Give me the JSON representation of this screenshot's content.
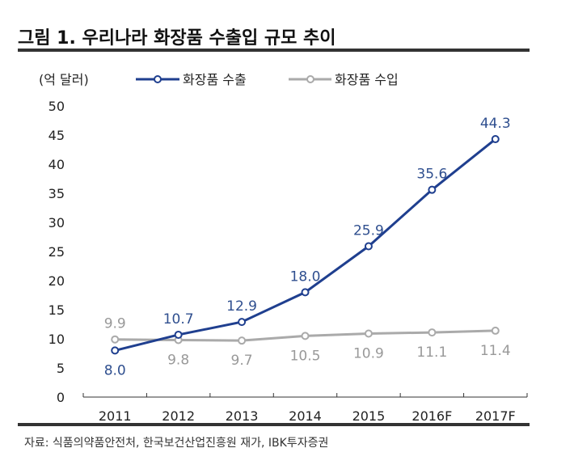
{
  "chart_data": {
    "type": "line",
    "title": "그림 1. 우리나라 화장품 수출입 규모 추이",
    "ylabel": "(억 달러)",
    "xlabel": "",
    "categories": [
      "2011",
      "2012",
      "2013",
      "2014",
      "2015",
      "2016F",
      "2017F"
    ],
    "ylim": [
      0,
      50
    ],
    "yticks": [
      0,
      5,
      10,
      15,
      20,
      25,
      30,
      35,
      40,
      45,
      50
    ],
    "grid": false,
    "legend_position": "top",
    "series": [
      {
        "name": "화장품 수출",
        "color": "#1f3f8f",
        "values": [
          8.0,
          10.7,
          12.9,
          18.0,
          25.9,
          35.6,
          44.3
        ],
        "labels": [
          "8.0",
          "10.7",
          "12.9",
          "18.0",
          "25.9",
          "35.6",
          "44.3"
        ]
      },
      {
        "name": "화장품 수입",
        "color": "#aaaaaa",
        "values": [
          9.9,
          9.8,
          9.7,
          10.5,
          10.9,
          11.1,
          11.4
        ],
        "labels": [
          "9.9",
          "9.8",
          "9.7",
          "10.5",
          "10.9",
          "11.1",
          "11.4"
        ]
      }
    ],
    "source": "자료: 식품의약품안전처, 한국보건산업진흥원 재가, IBK투자증권"
  }
}
